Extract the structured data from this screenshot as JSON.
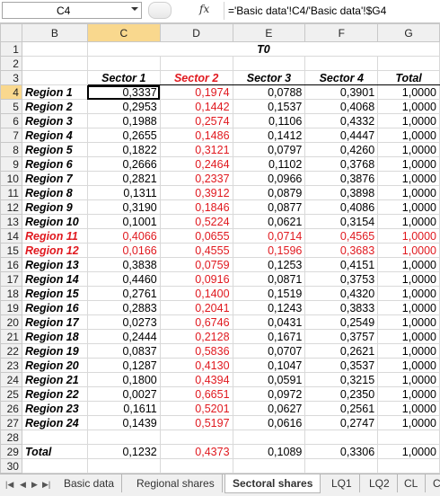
{
  "formula_bar": {
    "name_box": "C4",
    "fx_label": "fx",
    "formula": "='Basic data'!C4/'Basic data'!$G4"
  },
  "columns": [
    "B",
    "C",
    "D",
    "E",
    "F",
    "G"
  ],
  "row_numbers": [
    "1",
    "2",
    "3",
    "4",
    "5",
    "6",
    "7",
    "8",
    "9",
    "10",
    "11",
    "12",
    "13",
    "14",
    "15",
    "16",
    "17",
    "18",
    "19",
    "20",
    "21",
    "22",
    "23",
    "24",
    "25",
    "26",
    "27",
    "28",
    "29",
    "30"
  ],
  "period_label": "T0",
  "headers": [
    "Sector 1",
    "Sector 2",
    "Sector 3",
    "Sector 4",
    "Total"
  ],
  "regions": [
    {
      "name": "Region 1",
      "values": [
        "0,3337",
        "0,1974",
        "0,0788",
        "0,3901",
        "1,0000"
      ]
    },
    {
      "name": "Region 2",
      "values": [
        "0,2953",
        "0,1442",
        "0,1537",
        "0,4068",
        "1,0000"
      ]
    },
    {
      "name": "Region 3",
      "values": [
        "0,1988",
        "0,2574",
        "0,1106",
        "0,4332",
        "1,0000"
      ]
    },
    {
      "name": "Region 4",
      "values": [
        "0,2655",
        "0,1486",
        "0,1412",
        "0,4447",
        "1,0000"
      ]
    },
    {
      "name": "Region 5",
      "values": [
        "0,1822",
        "0,3121",
        "0,0797",
        "0,4260",
        "1,0000"
      ]
    },
    {
      "name": "Region 6",
      "values": [
        "0,2666",
        "0,2464",
        "0,1102",
        "0,3768",
        "1,0000"
      ]
    },
    {
      "name": "Region 7",
      "values": [
        "0,2821",
        "0,2337",
        "0,0966",
        "0,3876",
        "1,0000"
      ]
    },
    {
      "name": "Region 8",
      "values": [
        "0,1311",
        "0,3912",
        "0,0879",
        "0,3898",
        "1,0000"
      ]
    },
    {
      "name": "Region 9",
      "values": [
        "0,3190",
        "0,1846",
        "0,0877",
        "0,4086",
        "1,0000"
      ]
    },
    {
      "name": "Region 10",
      "values": [
        "0,1001",
        "0,5224",
        "0,0621",
        "0,3154",
        "1,0000"
      ]
    },
    {
      "name": "Region 11",
      "values": [
        "0,4066",
        "0,0655",
        "0,0714",
        "0,4565",
        "1,0000"
      ]
    },
    {
      "name": "Region 12",
      "values": [
        "0,0166",
        "0,4555",
        "0,1596",
        "0,3683",
        "1,0000"
      ]
    },
    {
      "name": "Region 13",
      "values": [
        "0,3838",
        "0,0759",
        "0,1253",
        "0,4151",
        "1,0000"
      ]
    },
    {
      "name": "Region 14",
      "values": [
        "0,4460",
        "0,0916",
        "0,0871",
        "0,3753",
        "1,0000"
      ]
    },
    {
      "name": "Region 15",
      "values": [
        "0,2761",
        "0,1400",
        "0,1519",
        "0,4320",
        "1,0000"
      ]
    },
    {
      "name": "Region 16",
      "values": [
        "0,2883",
        "0,2041",
        "0,1243",
        "0,3833",
        "1,0000"
      ]
    },
    {
      "name": "Region 17",
      "values": [
        "0,0273",
        "0,6746",
        "0,0431",
        "0,2549",
        "1,0000"
      ]
    },
    {
      "name": "Region 18",
      "values": [
        "0,2444",
        "0,2128",
        "0,1671",
        "0,3757",
        "1,0000"
      ]
    },
    {
      "name": "Region 19",
      "values": [
        "0,0837",
        "0,5836",
        "0,0707",
        "0,2621",
        "1,0000"
      ]
    },
    {
      "name": "Region 20",
      "values": [
        "0,1287",
        "0,4130",
        "0,1047",
        "0,3537",
        "1,0000"
      ]
    },
    {
      "name": "Region 21",
      "values": [
        "0,1800",
        "0,4394",
        "0,0591",
        "0,3215",
        "1,0000"
      ]
    },
    {
      "name": "Region 22",
      "values": [
        "0,0027",
        "0,6651",
        "0,0972",
        "0,2350",
        "1,0000"
      ]
    },
    {
      "name": "Region 23",
      "values": [
        "0,1611",
        "0,5201",
        "0,0627",
        "0,2561",
        "1,0000"
      ]
    },
    {
      "name": "Region 24",
      "values": [
        "0,1439",
        "0,5197",
        "0,0616",
        "0,2747",
        "1,0000"
      ]
    }
  ],
  "total_row": {
    "name": "Total",
    "values": [
      "0,1232",
      "0,4373",
      "0,1089",
      "0,3306",
      "1,0000"
    ]
  },
  "highlight": {
    "red_color": "#e0191f",
    "red_rows": [
      "Region 11",
      "Region 12"
    ],
    "red_column": "Sector 2"
  },
  "sheet_tabs": [
    "Basic data",
    "Regional shares",
    "Sectoral shares",
    "LQ1",
    "LQ2",
    "CL",
    "C"
  ],
  "active_tab": "Sectoral shares",
  "nav_icons": [
    "first-sheet-icon",
    "prev-sheet-icon",
    "next-sheet-icon",
    "last-sheet-icon"
  ]
}
